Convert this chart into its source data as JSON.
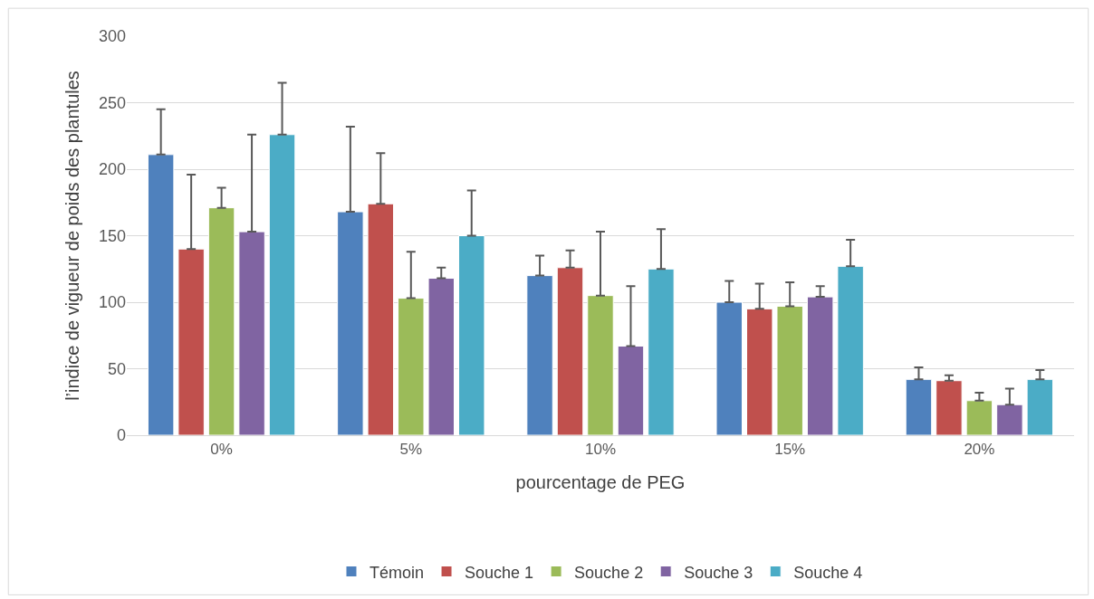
{
  "chart_data": {
    "type": "bar",
    "xlabel": "pourcentage de PEG",
    "ylabel": "l’indice de vigueur de poids des plantules",
    "categories": [
      "0%",
      "5%",
      "10%",
      "15%",
      "20%"
    ],
    "series": [
      {
        "name": "Témoin",
        "color": "#4f81bd",
        "values": [
          211,
          168,
          120,
          100,
          42
        ],
        "errors": [
          [
            211,
            245
          ],
          [
            168,
            232
          ],
          [
            120,
            135
          ],
          [
            100,
            116
          ],
          [
            42,
            51
          ]
        ]
      },
      {
        "name": "Souche 1",
        "color": "#c0504d",
        "values": [
          140,
          174,
          126,
          95,
          41
        ],
        "errors": [
          [
            140,
            196
          ],
          [
            174,
            212
          ],
          [
            126,
            139
          ],
          [
            95,
            114
          ],
          [
            41,
            45
          ]
        ]
      },
      {
        "name": "Souche 2",
        "color": "#9bbb59",
        "values": [
          171,
          103,
          105,
          97,
          26
        ],
        "errors": [
          [
            171,
            186
          ],
          [
            103,
            138
          ],
          [
            105,
            153
          ],
          [
            97,
            115
          ],
          [
            26,
            32
          ]
        ]
      },
      {
        "name": "Souche 3",
        "color": "#8064a2",
        "values": [
          153,
          118,
          67,
          104,
          23
        ],
        "errors": [
          [
            153,
            226
          ],
          [
            118,
            126
          ],
          [
            67,
            112
          ],
          [
            104,
            112
          ],
          [
            23,
            35
          ]
        ]
      },
      {
        "name": "Souche 4",
        "color": "#4bacc6",
        "values": [
          226,
          150,
          125,
          127,
          42
        ],
        "errors": [
          [
            226,
            265
          ],
          [
            150,
            184
          ],
          [
            125,
            155
          ],
          [
            127,
            147
          ],
          [
            42,
            49
          ]
        ]
      }
    ],
    "ylim": [
      0,
      300
    ],
    "yticks": [
      0,
      50,
      100,
      150,
      200,
      250,
      300
    ],
    "grid": "y",
    "legend": "bottom"
  }
}
